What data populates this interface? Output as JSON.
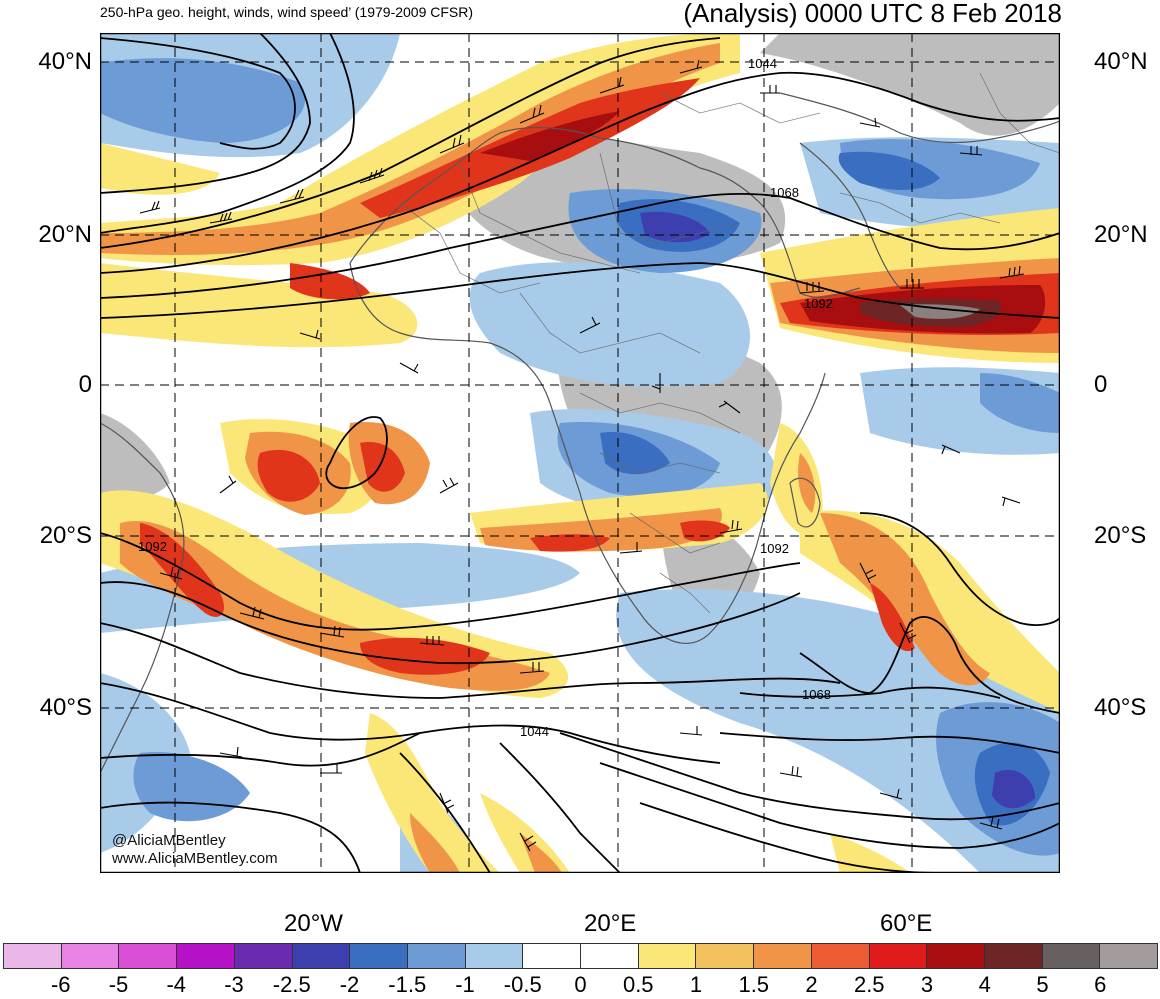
{
  "header": {
    "left_title": "250-hPa geo. height, winds, wind speed’ (1979-2009 CFSR)",
    "right_title": "(Analysis) 0000 UTC 8 Feb 2018"
  },
  "lat_labels": [
    "40°N",
    "20°N",
    "0",
    "20°S",
    "40°S"
  ],
  "lon_labels": [
    "20°W",
    "20°E",
    "60°E"
  ],
  "contour_labels": [
    "1044",
    "1068",
    "1092",
    "1092",
    "1092",
    "1068",
    "1044"
  ],
  "credit": {
    "handle": "@AliciaMBentley",
    "site": "www.AliciaMBentley.com"
  },
  "colorbar": {
    "labels": [
      "-6",
      "-5",
      "-4",
      "-3",
      "-2.5",
      "-2",
      "-1.5",
      "-1",
      "-0.5",
      "0",
      "0.5",
      "1",
      "1.5",
      "2",
      "2.5",
      "3",
      "4",
      "5",
      "6"
    ],
    "colors": [
      "#ebb7e8",
      "#e784e6",
      "#d94fd6",
      "#b512c8",
      "#6a2bb0",
      "#3d3fae",
      "#3a6ec1",
      "#6c9bd6",
      "#a9cbea",
      "#ffffff",
      "#ffffff",
      "#fbe678",
      "#f3c25f",
      "#f09448",
      "#ec5c32",
      "#e01b1b",
      "#a80d10",
      "#6e2525",
      "#686060",
      "#a49c9c"
    ]
  },
  "colors": {
    "land_gray": "#bdbdbd",
    "blue_mid": "#6c9bd6",
    "blue_dark": "#3a6ec1",
    "red": "#e0341b",
    "orange": "#f09448",
    "yellow": "#fbe678",
    "maroon": "#8c1a1a"
  }
}
